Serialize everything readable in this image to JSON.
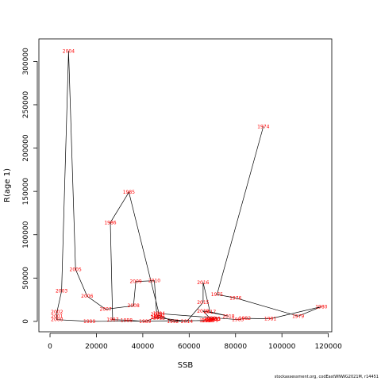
{
  "chart_data": {
    "type": "line",
    "title": "",
    "xlabel": "SSB",
    "ylabel": "R(age 1)",
    "xlim": [
      -4800,
      121500
    ],
    "ylim": [
      -12000,
      326000
    ],
    "x_ticks": [
      0,
      20000,
      40000,
      60000,
      80000,
      100000,
      120000
    ],
    "y_ticks": [
      0,
      50000,
      100000,
      150000,
      200000,
      250000,
      300000
    ],
    "series": [
      {
        "points": [
          {
            "year": "1974",
            "x": 92000,
            "y": 225000
          },
          {
            "year": "1975",
            "x": 72000,
            "y": 31000
          },
          {
            "year": "1976",
            "x": 80000,
            "y": 27000
          },
          {
            "year": "1979",
            "x": 107000,
            "y": 6000
          },
          {
            "year": "1980",
            "x": 117000,
            "y": 17000
          },
          {
            "year": "1981",
            "x": 95000,
            "y": 3000
          },
          {
            "year": "1982",
            "x": 84000,
            "y": 3500
          },
          {
            "year": "1983",
            "x": 81000,
            "y": 2000
          },
          {
            "year": "1984",
            "x": 47000,
            "y": 9000
          },
          {
            "year": "1985",
            "x": 34000,
            "y": 149000
          },
          {
            "year": "1986",
            "x": 26000,
            "y": 114000
          },
          {
            "year": "1987",
            "x": 27000,
            "y": 2000
          },
          {
            "year": "1988",
            "x": 33000,
            "y": 1500
          },
          {
            "year": "1989",
            "x": 41000,
            "y": 0
          },
          {
            "year": "1990",
            "x": 46000,
            "y": 5000
          },
          {
            "year": "1991",
            "x": 47000,
            "y": 7000
          },
          {
            "year": "1992",
            "x": 53000,
            "y": 0
          },
          {
            "year": "1993",
            "x": 70000,
            "y": 1500
          },
          {
            "year": "1994",
            "x": 70000,
            "y": 2000
          },
          {
            "year": "1995",
            "x": 71000,
            "y": 3000
          },
          {
            "year": "1996",
            "x": 67000,
            "y": 1000
          },
          {
            "year": "1997",
            "x": 68000,
            "y": 1500
          },
          {
            "year": "1998",
            "x": 68000,
            "y": 1000
          },
          {
            "year": "1999",
            "x": 17000,
            "y": 0
          },
          {
            "year": "2000",
            "x": 3000,
            "y": 2000
          },
          {
            "year": "2001",
            "x": 3000,
            "y": 6000
          },
          {
            "year": "2002",
            "x": 3000,
            "y": 11000
          },
          {
            "year": "2003",
            "x": 5000,
            "y": 35000
          },
          {
            "year": "2004",
            "x": 8000,
            "y": 312000
          },
          {
            "year": "2005",
            "x": 11000,
            "y": 60000
          },
          {
            "year": "2006",
            "x": 16000,
            "y": 29000
          },
          {
            "year": "2007",
            "x": 24000,
            "y": 14000
          },
          {
            "year": "2008",
            "x": 36000,
            "y": 18000
          },
          {
            "year": "2009",
            "x": 37000,
            "y": 46000
          },
          {
            "year": "2010",
            "x": 45000,
            "y": 47000
          },
          {
            "year": "2011",
            "x": 46000,
            "y": 8000
          },
          {
            "year": "2012",
            "x": 47000,
            "y": 4000
          },
          {
            "year": "2013",
            "x": 46000,
            "y": 4500
          },
          {
            "year": "2014",
            "x": 59000,
            "y": 0
          },
          {
            "year": "2015",
            "x": 66000,
            "y": 22000
          },
          {
            "year": "2016",
            "x": 66000,
            "y": 45000
          },
          {
            "year": "2017",
            "x": 69000,
            "y": 11000
          },
          {
            "year": "2018",
            "x": 77000,
            "y": 6000
          },
          {
            "year": "2019",
            "x": 66000,
            "y": 12000
          },
          {
            "year": "2020",
            "x": 69000,
            "y": 3500
          },
          {
            "year": "2021",
            "x": 71000,
            "y": 2500
          }
        ]
      }
    ],
    "line_color": "#000000",
    "label_color": "#ff0000",
    "grid": false,
    "legend": "none"
  },
  "footer": {
    "source": "stockassessment.org, codEastWNWG2021M, r14451"
  }
}
